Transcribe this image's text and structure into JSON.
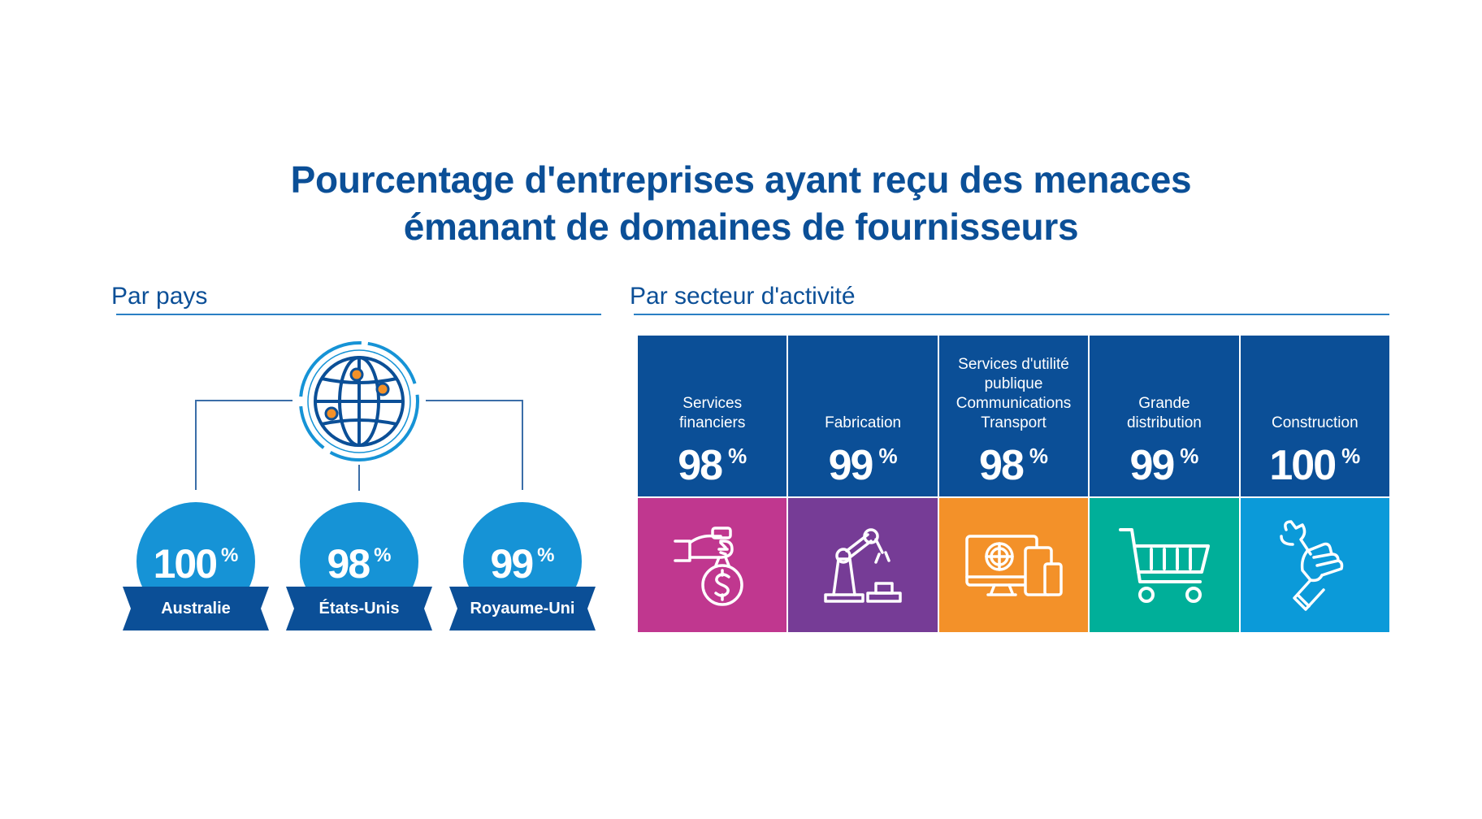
{
  "title": {
    "line1": "Pourcentage d'entreprises ayant reçu des menaces",
    "line2": "émanant de domaines de fournisseurs"
  },
  "by_country": {
    "heading": "Par pays",
    "icon": "globe-network-icon",
    "items": [
      {
        "value": "100",
        "unit": "%",
        "label": "Australie"
      },
      {
        "value": "98",
        "unit": "%",
        "label": "États-Unis"
      },
      {
        "value": "99",
        "unit": "%",
        "label": "Royaume-Uni"
      }
    ]
  },
  "by_sector": {
    "heading": "Par secteur d'activité",
    "items": [
      {
        "name_lines": [
          "Services",
          "financiers"
        ],
        "value": "98",
        "unit": "%",
        "icon": "money-bag-hand-icon",
        "color": "#c0378f"
      },
      {
        "name_lines": [
          "Fabrication"
        ],
        "value": "99",
        "unit": "%",
        "icon": "robot-arm-icon",
        "color": "#763c96"
      },
      {
        "name_lines": [
          "Services d'utilité",
          "publique",
          "Communications",
          "Transport"
        ],
        "value": "98",
        "unit": "%",
        "icon": "devices-icon",
        "color": "#f39129"
      },
      {
        "name_lines": [
          "Grande",
          "distribution"
        ],
        "value": "99",
        "unit": "%",
        "icon": "shopping-cart-icon",
        "color": "#00af99"
      },
      {
        "name_lines": [
          "Construction"
        ],
        "value": "100",
        "unit": "%",
        "icon": "wrench-hand-icon",
        "color": "#0b9ad9"
      }
    ]
  },
  "colors": {
    "primary_blue": "#0b4f97",
    "badge_blue": "#1693d6",
    "rule_blue": "#2a7fc4",
    "accent_orange": "#f39129"
  }
}
